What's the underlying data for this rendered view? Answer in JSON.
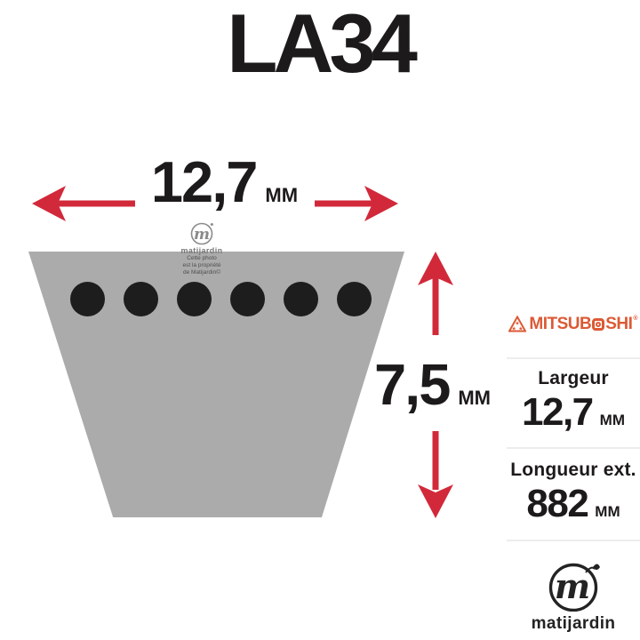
{
  "title": "LA34",
  "dimensions": {
    "width": {
      "value": "12,7",
      "unit": "MM"
    },
    "height": {
      "value": "7,5",
      "unit": "MM"
    }
  },
  "belt": {
    "hole_count": 6
  },
  "colors": {
    "arrow": "#d2293a",
    "brand": "#dc5a35",
    "text": "#1d1a1b",
    "belt": "#ababab",
    "hole": "#1d1d1d",
    "divider": "#ededed"
  },
  "watermark": {
    "brand": "matijardin",
    "lines": [
      "Cette photo",
      "est la propriété",
      "de Matijardin©"
    ]
  },
  "sidebar": {
    "brand": {
      "prefix": "MITSUB",
      "suffix": "SHI",
      "registered": "®"
    },
    "specs": [
      {
        "label": "Largeur",
        "value": "12,7",
        "unit": "MM"
      },
      {
        "label": "Longueur ext.",
        "value": "882",
        "unit": "MM"
      }
    ]
  },
  "footer": {
    "brand": "matijardin"
  }
}
